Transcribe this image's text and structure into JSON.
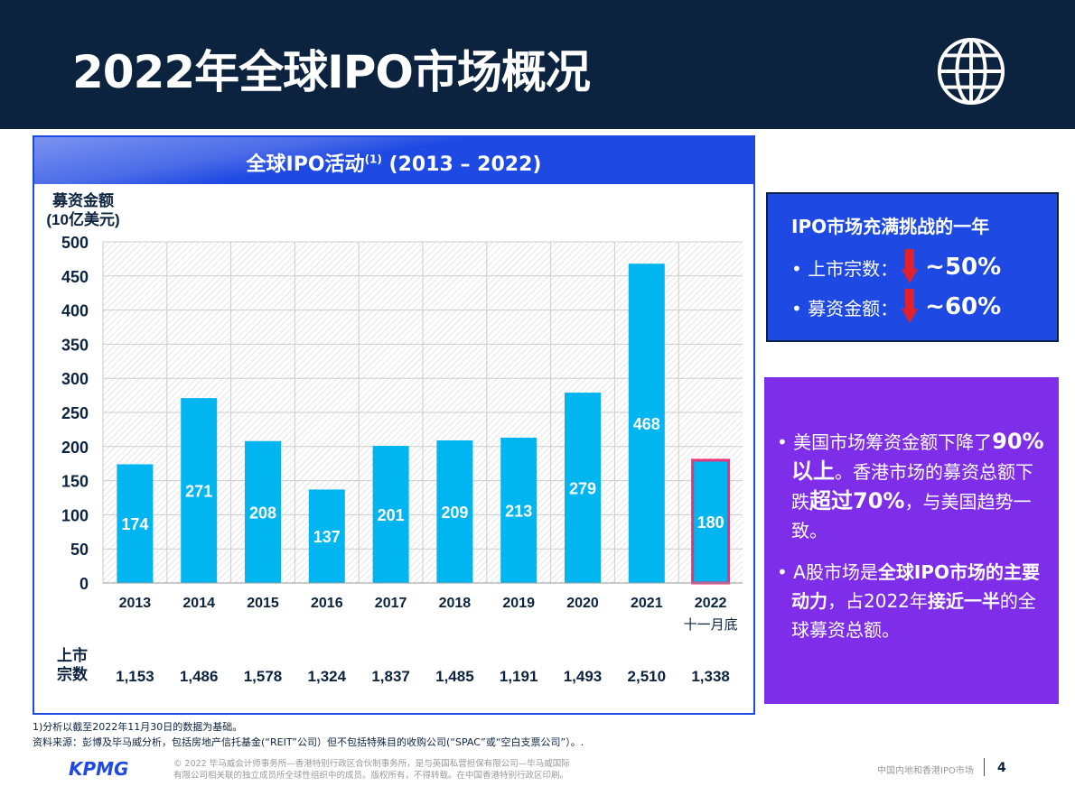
{
  "header": {
    "title": "2022年全球IPO市场概况",
    "icon": "globe-icon"
  },
  "chart_header": {
    "title": "全球IPO活动",
    "sup": "(1)",
    "range": " (2013 – 2022)"
  },
  "chart_data": {
    "type": "bar",
    "ylabel": "募资金额\n(10亿美元)",
    "ylabel_line1": "募资金额",
    "ylabel_line2": "(10亿美元)",
    "ylim": [
      0,
      500
    ],
    "yticks": [
      0,
      50,
      100,
      150,
      200,
      250,
      300,
      350,
      400,
      450,
      500
    ],
    "categories": [
      "2013",
      "2014",
      "2015",
      "2016",
      "2017",
      "2018",
      "2019",
      "2020",
      "2021",
      "2022"
    ],
    "category_sublabel_2022": "十一月底",
    "values": [
      174,
      271,
      208,
      137,
      201,
      209,
      213,
      279,
      468,
      180
    ],
    "highlight": "2022",
    "bar_color": "#00b5f0",
    "highlight_border": "#e8337a",
    "deals_label_line1": "上市",
    "deals_label_line2": "宗数",
    "deals": [
      "1,153",
      "1,486",
      "1,578",
      "1,324",
      "1,837",
      "1,485",
      "1,191",
      "1,493",
      "2,510",
      "1,338"
    ]
  },
  "box1": {
    "title": "IPO市场充满挑战的一年",
    "rows": [
      {
        "label": "• 上市宗数：",
        "value": "~50%"
      },
      {
        "label": "• 募资金额：",
        "value": "~60%"
      }
    ]
  },
  "box2": {
    "p1": [
      "• 美国市场筹资金额下降了",
      "90%以上",
      "。香港市场的募资总额下跌",
      "超过70%",
      "，与美国趋势一致。"
    ],
    "p2": [
      "• A股市场是",
      "全球IPO市场的主要动力",
      "，占2022年",
      "接近一半",
      "的全球募资总额。"
    ]
  },
  "footnotes": [
    "1)分析以截至2022年11月30日的数据为基础。",
    "资料来源：彭博及毕马威分析，包括房地产信托基金(“REIT”公司）但不包括特殊目的收购公司(“SPAC”或“空白支票公司”）。."
  ],
  "footer": {
    "logo": "KPMG",
    "copyright1": "© 2022 毕马威会计师事务所—香港特别行政区合伙制事务所，是与英国私营担保有限公司—毕马威国际",
    "copyright2": "有限公司相关联的独立成员所全球性组织中的成员。版权所有，不得转载。在中国香港特别行政区印刷。",
    "report": "中国内地和香港IPO市场",
    "page": "4"
  },
  "colors": {
    "navy": "#0c2340",
    "blue": "#1e49e2",
    "purple": "#7e2de8",
    "red": "#e3212b"
  }
}
